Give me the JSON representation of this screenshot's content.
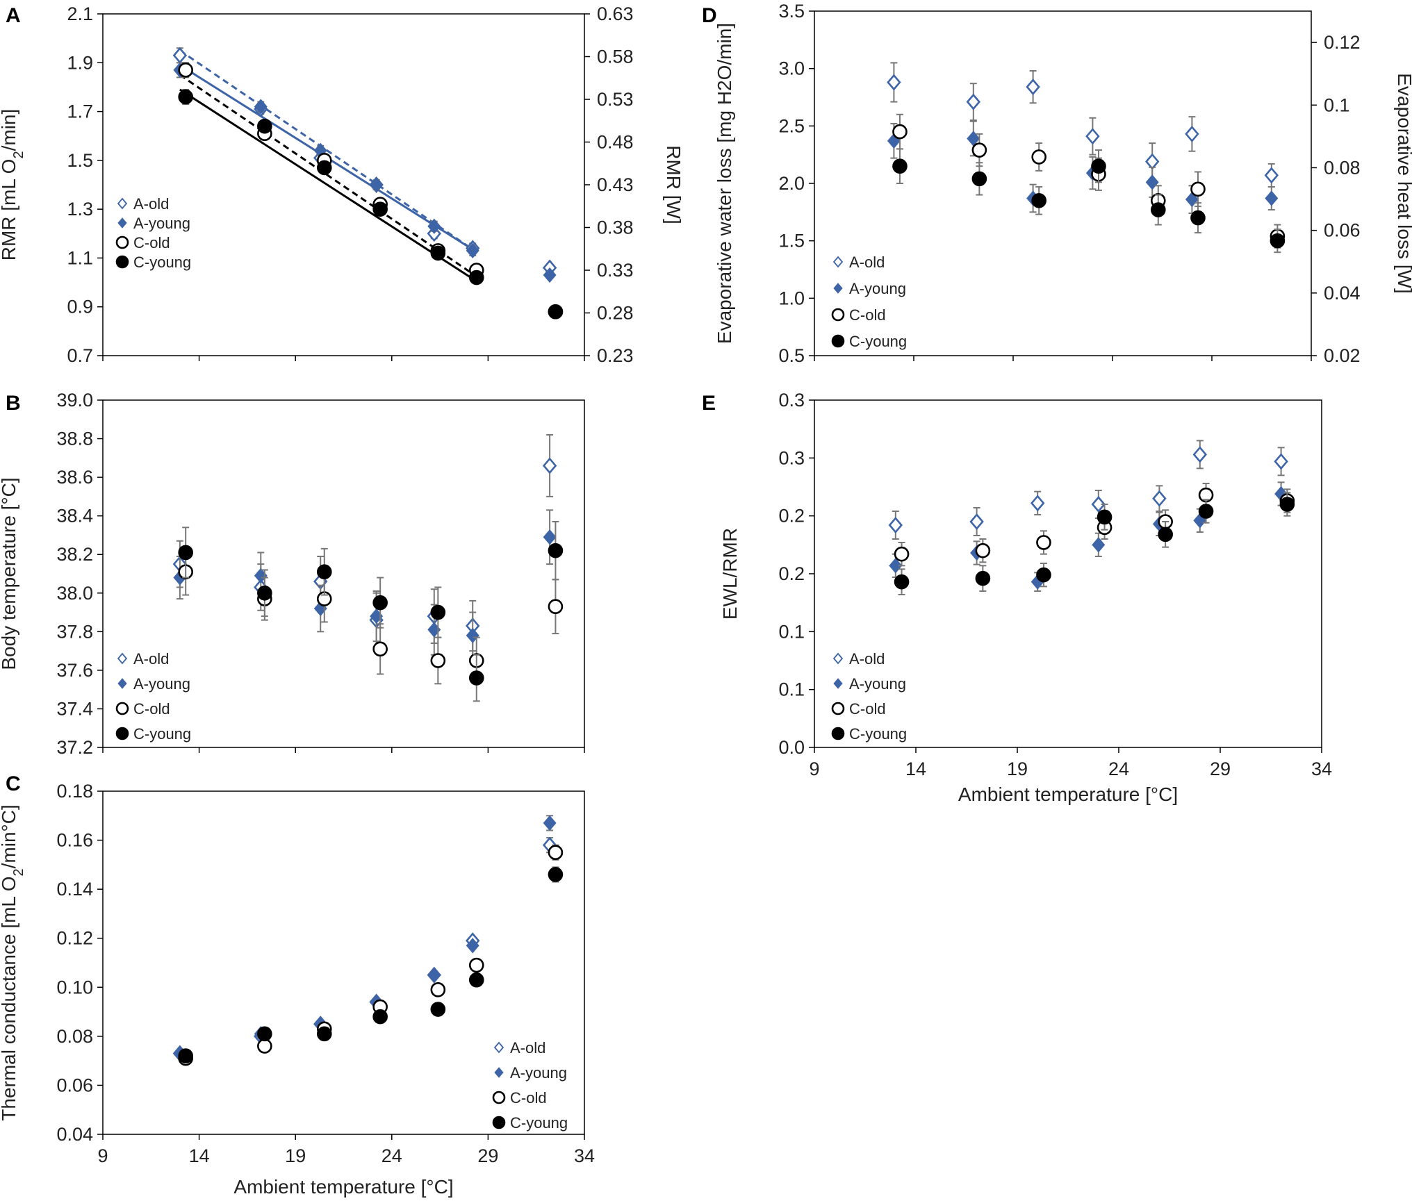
{
  "series_styles": {
    "A-old": {
      "marker": "diamond-open",
      "color": "#3e64a8"
    },
    "A-young": {
      "marker": "diamond-filled",
      "color": "#3e64a8"
    },
    "C-old": {
      "marker": "circle-open",
      "color": "#000000"
    },
    "C-young": {
      "marker": "circle-filled",
      "color": "#000000"
    }
  },
  "chart_data": [
    {
      "id": "A",
      "panel_label": "A",
      "type": "scatter",
      "xlim": [
        9,
        34
      ],
      "xticks": [
        9,
        14,
        19,
        24,
        29,
        34
      ],
      "ylim": [
        0.7,
        2.1
      ],
      "yticks": [
        "0.7",
        "0.9",
        "1.1",
        "1.3",
        "1.5",
        "1.7",
        "1.9",
        "2.1"
      ],
      "ylabel": "RMR [mL O2/min]",
      "ylabel_sub": "2",
      "y2lim": [
        0.23,
        0.63
      ],
      "y2ticks": [
        "0.23",
        "0.28",
        "0.33",
        "0.38",
        "0.43",
        "0.48",
        "0.53",
        "0.58",
        "0.63"
      ],
      "y2label": "RMR [W]",
      "xlabel": "",
      "legend": [
        "A-old",
        "A-young",
        "C-old",
        "C-young"
      ],
      "series": [
        {
          "name": "A-old",
          "x": [
            13.0,
            17.2,
            20.3,
            23.2,
            26.2,
            28.2,
            32.2
          ],
          "y": [
            1.93,
            1.71,
            1.51,
            1.4,
            1.2,
            1.14,
            1.06
          ],
          "err": [
            0.03,
            0.02,
            0.02,
            0.02,
            0.02,
            0.02,
            0.01
          ]
        },
        {
          "name": "A-young",
          "x": [
            13.0,
            17.2,
            20.3,
            23.2,
            26.2,
            28.2,
            32.2
          ],
          "y": [
            1.87,
            1.72,
            1.54,
            1.4,
            1.23,
            1.13,
            1.03
          ],
          "err": [
            0.03,
            0.02,
            0.02,
            0.02,
            0.02,
            0.02,
            0.01
          ]
        },
        {
          "name": "C-old",
          "x": [
            13.3,
            17.4,
            20.5,
            23.4,
            26.4,
            28.4,
            32.5
          ],
          "y": [
            1.87,
            1.61,
            1.5,
            1.32,
            1.13,
            1.05,
            0.88
          ],
          "err": [
            0.03,
            0.02,
            0.02,
            0.02,
            0.02,
            0.02,
            0.01
          ]
        },
        {
          "name": "C-young",
          "x": [
            13.3,
            17.4,
            20.5,
            23.4,
            26.4,
            28.4,
            32.5
          ],
          "y": [
            1.76,
            1.64,
            1.47,
            1.3,
            1.12,
            1.02,
            0.88
          ],
          "err": [
            0.03,
            0.02,
            0.02,
            0.02,
            0.02,
            0.02,
            0.01
          ]
        }
      ],
      "fit_lines": [
        {
          "name": "A-old",
          "x": [
            13,
            28.3
          ],
          "y": [
            1.95,
            1.13
          ],
          "color": "#3e64a8",
          "dash": true
        },
        {
          "name": "A-young",
          "x": [
            13,
            28.3
          ],
          "y": [
            1.89,
            1.13
          ],
          "color": "#3e64a8",
          "dash": false
        },
        {
          "name": "C-old",
          "x": [
            13,
            28.3
          ],
          "y": [
            1.85,
            1.03
          ],
          "color": "#000000",
          "dash": true
        },
        {
          "name": "C-young",
          "x": [
            13,
            28.3
          ],
          "y": [
            1.79,
            1.01
          ],
          "color": "#000000",
          "dash": false
        }
      ]
    },
    {
      "id": "B",
      "panel_label": "B",
      "type": "scatter",
      "xlim": [
        9,
        34
      ],
      "xticks": [
        9,
        14,
        19,
        24,
        29,
        34
      ],
      "ylim": [
        37.2,
        39.0
      ],
      "yticks": [
        "37.2",
        "37.4",
        "37.6",
        "37.8",
        "38.0",
        "38.2",
        "38.4",
        "38.6",
        "38.8",
        "39.0"
      ],
      "ylabel": "Body temperature [°C]",
      "xlabel": "",
      "legend": [
        "A-old",
        "A-young",
        "C-old",
        "C-young"
      ],
      "series": [
        {
          "name": "A-old",
          "x": [
            13.0,
            17.2,
            20.3,
            23.2,
            26.2,
            28.2,
            32.2
          ],
          "y": [
            38.15,
            38.03,
            38.06,
            37.86,
            37.88,
            37.83,
            38.66
          ],
          "err": [
            0.12,
            0.12,
            0.13,
            0.14,
            0.14,
            0.13,
            0.16
          ]
        },
        {
          "name": "A-young",
          "x": [
            13.0,
            17.2,
            20.3,
            23.2,
            26.2,
            28.2,
            32.2
          ],
          "y": [
            38.08,
            38.09,
            37.92,
            37.88,
            37.81,
            37.78,
            38.29
          ],
          "err": [
            0.11,
            0.12,
            0.12,
            0.13,
            0.13,
            0.12,
            0.14
          ]
        },
        {
          "name": "C-old",
          "x": [
            13.3,
            17.4,
            20.5,
            23.4,
            26.4,
            28.4,
            32.5
          ],
          "y": [
            38.11,
            37.97,
            37.97,
            37.71,
            37.65,
            37.65,
            37.93
          ],
          "err": [
            0.12,
            0.11,
            0.12,
            0.13,
            0.12,
            0.12,
            0.14
          ]
        },
        {
          "name": "C-young",
          "x": [
            13.3,
            17.4,
            20.5,
            23.4,
            26.4,
            28.4,
            32.5
          ],
          "y": [
            38.21,
            38.0,
            38.11,
            37.95,
            37.9,
            37.56,
            38.22
          ],
          "err": [
            0.13,
            0.12,
            0.12,
            0.13,
            0.13,
            0.12,
            0.15
          ]
        }
      ]
    },
    {
      "id": "C",
      "panel_label": "C",
      "type": "scatter",
      "xlim": [
        9,
        34
      ],
      "xticks": [
        9,
        14,
        19,
        24,
        29,
        34
      ],
      "ylim": [
        0.04,
        0.18
      ],
      "yticks": [
        "0.04",
        "0.06",
        "0.08",
        "0.10",
        "0.12",
        "0.14",
        "0.16",
        "0.18"
      ],
      "ylabel": "Thermal conductance [mL O2/min°C]",
      "ylabel_sub": "2",
      "xlabel": "Ambient temperature [°C]",
      "legend": [
        "A-old",
        "A-young",
        "C-old",
        "C-young"
      ],
      "series": [
        {
          "name": "A-old",
          "x": [
            13.0,
            17.2,
            20.3,
            23.2,
            26.2,
            28.2,
            32.2
          ],
          "y": [
            0.073,
            0.08,
            0.085,
            0.094,
            0.105,
            0.119,
            0.158
          ],
          "err": [
            0.001,
            0.001,
            0.001,
            0.001,
            0.001,
            0.001,
            0.003
          ]
        },
        {
          "name": "A-young",
          "x": [
            13.0,
            17.2,
            20.3,
            23.2,
            26.2,
            28.2,
            32.2
          ],
          "y": [
            0.073,
            0.081,
            0.085,
            0.094,
            0.105,
            0.117,
            0.167
          ],
          "err": [
            0.001,
            0.001,
            0.001,
            0.001,
            0.001,
            0.001,
            0.003
          ]
        },
        {
          "name": "C-old",
          "x": [
            13.3,
            17.4,
            20.5,
            23.4,
            26.4,
            28.4,
            32.5
          ],
          "y": [
            0.071,
            0.076,
            0.083,
            0.092,
            0.099,
            0.109,
            0.155
          ],
          "err": [
            0.001,
            0.001,
            0.001,
            0.001,
            0.001,
            0.001,
            0.003
          ]
        },
        {
          "name": "C-young",
          "x": [
            13.3,
            17.4,
            20.5,
            23.4,
            26.4,
            28.4,
            32.5
          ],
          "y": [
            0.072,
            0.081,
            0.081,
            0.088,
            0.091,
            0.103,
            0.146
          ],
          "err": [
            0.001,
            0.001,
            0.001,
            0.001,
            0.001,
            0.001,
            0.003
          ]
        }
      ]
    },
    {
      "id": "D",
      "panel_label": "D",
      "type": "scatter",
      "xlim": [
        9,
        34
      ],
      "xticks": [],
      "ylim": [
        0.5,
        3.5
      ],
      "yticks": [
        "0.5",
        "1.0",
        "1.5",
        "2.0",
        "2.5",
        "3.0",
        "3.5"
      ],
      "ylabel": "Evaporative water loss [mg H2O/min]",
      "ylabel_sub": "2",
      "y2lim": [
        0.02,
        0.13
      ],
      "y2ticks": [
        "0.02",
        "0.04",
        "0.06",
        "0.08",
        "0.1",
        "0.12"
      ],
      "y2label": "Evaporative heat loss [W]",
      "xlabel": "",
      "legend": [
        "A-old",
        "A-young",
        "C-old",
        "C-young"
      ],
      "series": [
        {
          "name": "A-old",
          "x": [
            13.0,
            17.0,
            20.0,
            23.0,
            26.0,
            28.0,
            32.0
          ],
          "y": [
            2.88,
            2.71,
            2.84,
            2.41,
            2.19,
            2.43,
            2.07
          ],
          "err": [
            0.17,
            0.16,
            0.14,
            0.16,
            0.16,
            0.15,
            0.1
          ]
        },
        {
          "name": "A-young",
          "x": [
            13.0,
            17.0,
            20.0,
            23.0,
            26.0,
            28.0,
            32.0
          ],
          "y": [
            2.37,
            2.39,
            1.87,
            2.09,
            2.01,
            1.86,
            1.87
          ],
          "err": [
            0.15,
            0.15,
            0.12,
            0.14,
            0.13,
            0.12,
            0.1
          ]
        },
        {
          "name": "C-old",
          "x": [
            13.3,
            17.3,
            20.3,
            23.3,
            26.3,
            28.3,
            32.3
          ],
          "y": [
            2.45,
            2.29,
            2.23,
            2.08,
            1.85,
            1.95,
            1.54
          ],
          "err": [
            0.15,
            0.14,
            0.12,
            0.14,
            0.13,
            0.15,
            0.1
          ]
        },
        {
          "name": "C-young",
          "x": [
            13.3,
            17.3,
            20.3,
            23.3,
            26.3,
            28.3,
            32.3
          ],
          "y": [
            2.15,
            2.04,
            1.85,
            2.15,
            1.77,
            1.7,
            1.5
          ],
          "err": [
            0.15,
            0.14,
            0.12,
            0.14,
            0.13,
            0.13,
            0.1
          ]
        }
      ]
    },
    {
      "id": "E",
      "panel_label": "E",
      "type": "scatter",
      "xlim": [
        9,
        34
      ],
      "xticks": [
        9,
        14,
        19,
        24,
        29,
        34
      ],
      "ylim": [
        0.0,
        0.3
      ],
      "ytick_values": [
        0.0,
        0.05,
        0.1,
        0.15,
        0.2,
        0.25,
        0.3
      ],
      "yticks": [
        "0.0",
        "0.1",
        "0.1",
        "0.2",
        "0.2",
        "0.3",
        "0.3"
      ],
      "ylabel": "EWL/RMR",
      "xlabel": "Ambient temperature [°C]",
      "legend": [
        "A-old",
        "A-young",
        "C-old",
        "C-young"
      ],
      "series": [
        {
          "name": "A-old",
          "x": [
            13.0,
            17.0,
            20.0,
            23.0,
            26.0,
            28.0,
            32.0
          ],
          "y": [
            0.192,
            0.195,
            0.211,
            0.21,
            0.215,
            0.253,
            0.247
          ],
          "err": [
            0.012,
            0.012,
            0.01,
            0.012,
            0.011,
            0.012,
            0.012
          ]
        },
        {
          "name": "A-young",
          "x": [
            13.0,
            17.0,
            20.0,
            23.0,
            26.0,
            28.0,
            32.0
          ],
          "y": [
            0.157,
            0.168,
            0.143,
            0.175,
            0.193,
            0.196,
            0.219
          ],
          "err": [
            0.01,
            0.01,
            0.008,
            0.01,
            0.01,
            0.01,
            0.01
          ]
        },
        {
          "name": "C-old",
          "x": [
            13.3,
            17.3,
            20.3,
            23.3,
            26.3,
            28.3,
            32.3
          ],
          "y": [
            0.167,
            0.17,
            0.177,
            0.19,
            0.195,
            0.218,
            0.213
          ],
          "err": [
            0.01,
            0.01,
            0.01,
            0.01,
            0.01,
            0.01,
            0.01
          ]
        },
        {
          "name": "C-young",
          "x": [
            13.3,
            17.3,
            20.3,
            23.3,
            26.3,
            28.3,
            32.3
          ],
          "y": [
            0.143,
            0.146,
            0.149,
            0.199,
            0.184,
            0.204,
            0.21
          ],
          "err": [
            0.011,
            0.011,
            0.01,
            0.011,
            0.011,
            0.01,
            0.01
          ]
        }
      ]
    }
  ]
}
